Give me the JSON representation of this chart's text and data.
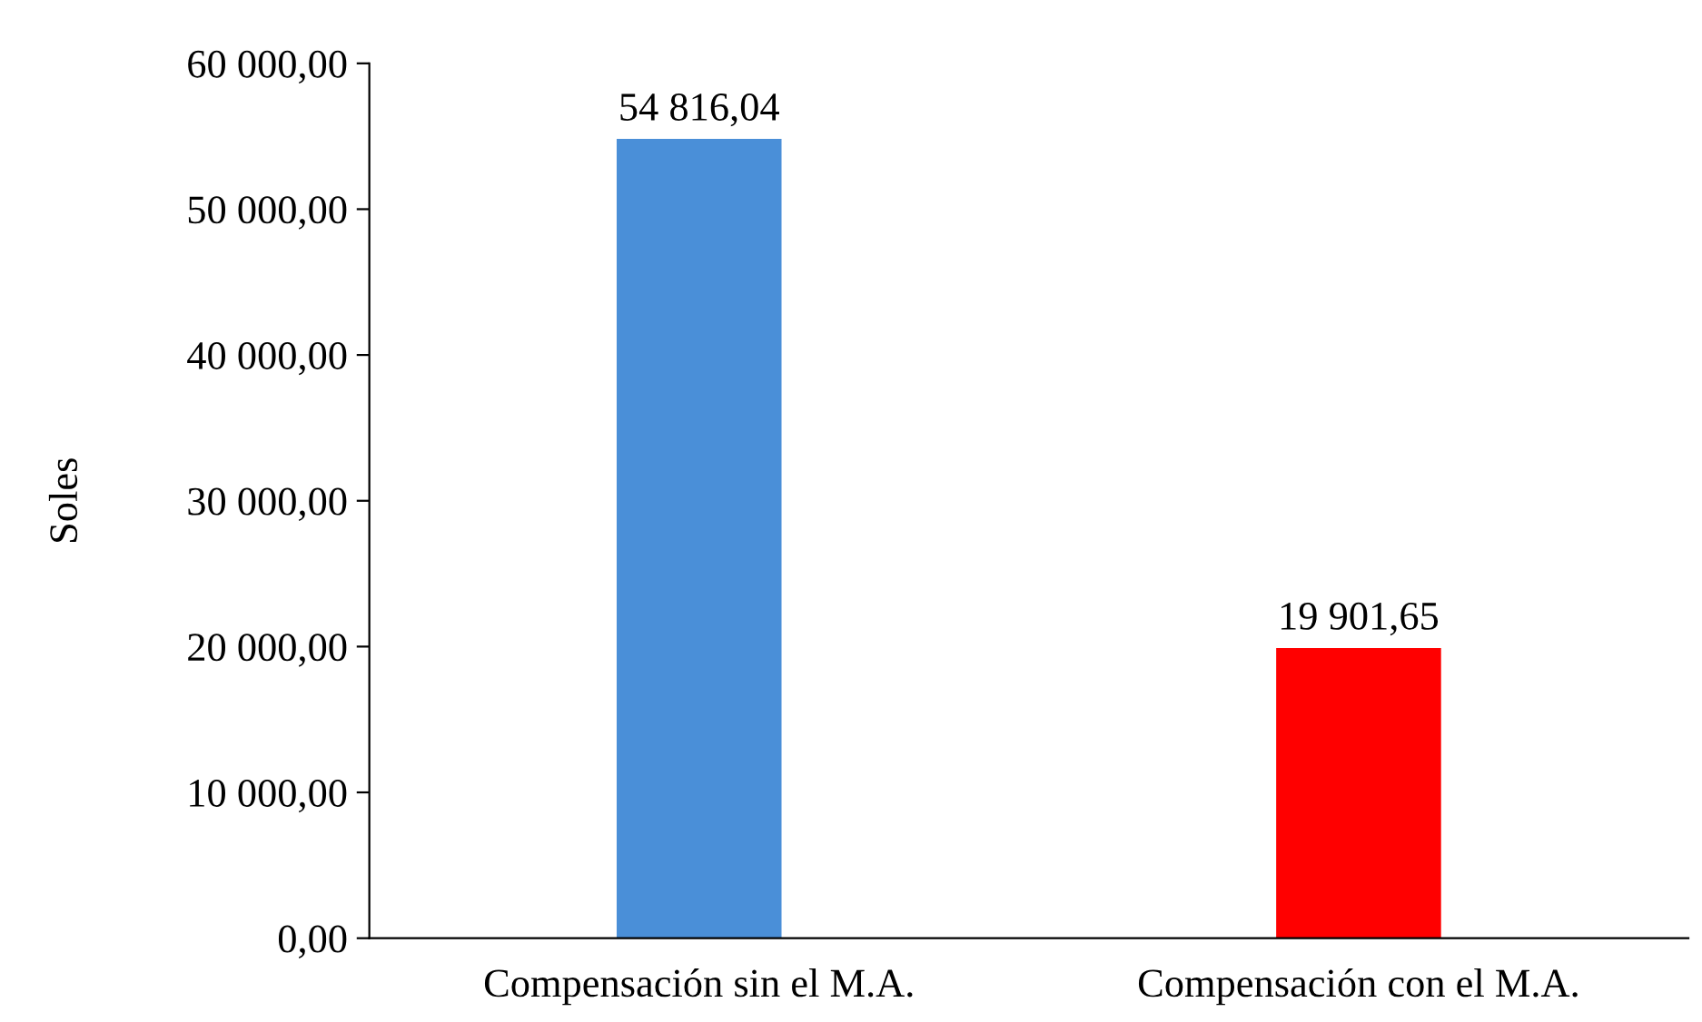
{
  "chart_data": {
    "type": "bar",
    "ylabel": "Soles",
    "categories": [
      "Compensación sin el M.A.",
      "Compensación con el M.A."
    ],
    "values": [
      54816.04,
      19901.65
    ],
    "colors": [
      "#4a8fd8",
      "#ff0000"
    ],
    "value_labels": [
      "54 816,04",
      "19 901,65"
    ],
    "ylim": [
      0,
      60000
    ],
    "yticks": [
      {
        "value": 0,
        "label": "0,00"
      },
      {
        "value": 10000,
        "label": "10 000,00"
      },
      {
        "value": 20000,
        "label": "20 000,00"
      },
      {
        "value": 30000,
        "label": "30 000,00"
      },
      {
        "value": 40000,
        "label": "40 000,00"
      },
      {
        "value": 50000,
        "label": "50 000,00"
      },
      {
        "value": 60000,
        "label": "60 000,00"
      }
    ],
    "grid": false,
    "legend": false
  }
}
